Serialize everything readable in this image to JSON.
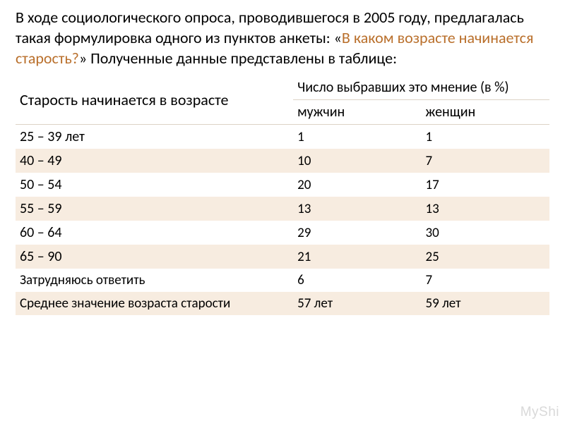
{
  "intro": {
    "plain_a": "В ходе социологического опроса, проводившегося в 2005 году, предлагалась такая формулировка одного из пунктов анкеты: «",
    "question": "В каком возрасте начинается старость?",
    "plain_b": "» Полученные данные представлены в таблице:"
  },
  "table": {
    "header_left": "Старость начинается в возрасте",
    "header_group": "Число выбравших это мнение (в %)",
    "col_men": "мужчин",
    "col_women": "женщин",
    "rows": [
      {
        "label": "25 – 39 лет",
        "men": "1",
        "women": "1"
      },
      {
        "label": "40 – 49",
        "men": "10",
        "women": "7"
      },
      {
        "label": "50 – 54",
        "men": "20",
        "women": "17"
      },
      {
        "label": "55 – 59",
        "men": "13",
        "women": "13"
      },
      {
        "label": "60 – 64",
        "men": "29",
        "women": "30"
      },
      {
        "label": "65 – 90",
        "men": "21",
        "women": "25"
      }
    ],
    "footer1": {
      "label": "Затрудняюсь ответить",
      "men": "6",
      "women": "7"
    },
    "footer2": {
      "label": "Среднее значение возраста старости",
      "men": "57 лет",
      "women": "59 лет"
    }
  },
  "watermark": "MyShi",
  "style": {
    "stripe_color": "#f7ece0",
    "question_color": "#b96f2b",
    "border_color": "#dcd3c6",
    "intro_fontsize": 22,
    "header_fontsize": 22,
    "row_label_fontsize": 20,
    "row_val_fontsize": 19
  }
}
